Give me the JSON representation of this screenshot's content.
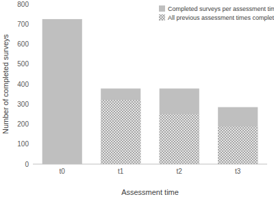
{
  "chart_data": {
    "type": "bar",
    "categories": [
      "t0",
      "t1",
      "t2",
      "t3"
    ],
    "series": [
      {
        "name": "Completed surveys per assessment time",
        "color": "#bfbfbf",
        "values": [
          725,
          378,
          378,
          285
        ]
      },
      {
        "name": "All previous assessment times completed",
        "color": "#e6e6e6",
        "values": [
          null,
          320,
          250,
          188
        ]
      }
    ],
    "x_label": "Assessment time",
    "y_label": "Number of completed surveys",
    "ylim": [
      0,
      800
    ],
    "yticks": [
      0,
      100,
      200,
      300,
      400,
      500,
      600,
      700,
      800
    ],
    "stacked": false,
    "grid": false,
    "legend": "top-right"
  }
}
